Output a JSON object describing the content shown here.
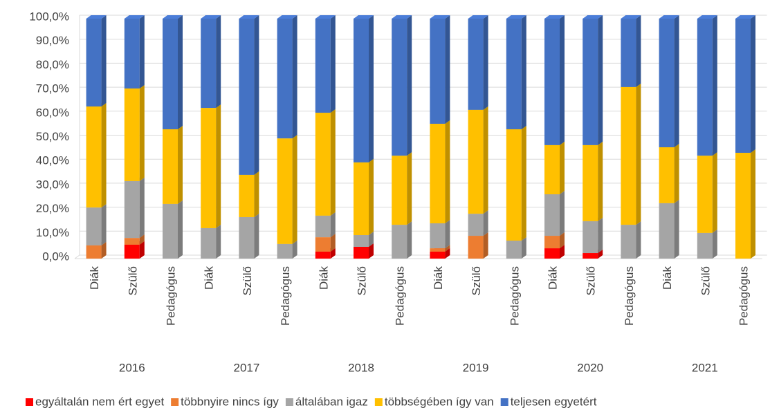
{
  "chart_data": {
    "type": "stacked_bar_3d",
    "categories": [
      "Diák",
      "Szülő",
      "Pedagógus",
      "Diák",
      "Szülő",
      "Pedagógus",
      "Diák",
      "Szülő",
      "Pedagógus",
      "Diák",
      "Szülő",
      "Pedagógus",
      "Diák",
      "Szülő",
      "Pedagógus",
      "Diák",
      "Szülő",
      "Pedagógus"
    ],
    "groups": [
      "2016",
      "2017",
      "2018",
      "2019",
      "2020",
      "2021"
    ],
    "series": [
      {
        "name": "egyáltalán nem ért egyet",
        "color": "#ff0000",
        "values": [
          0,
          5.8,
          0,
          0,
          0,
          0,
          2.9,
          4.9,
          0,
          2.9,
          0,
          0,
          4.3,
          2.3,
          0,
          0,
          0,
          0
        ]
      },
      {
        "name": "többnyire nincs így",
        "color": "#ed7d31",
        "values": [
          5.5,
          2.8,
          0,
          0,
          0,
          0,
          6.0,
          0,
          0,
          1.4,
          9.5,
          0,
          5.2,
          0,
          0,
          0,
          0,
          0
        ]
      },
      {
        "name": "általában igaz",
        "color": "#a5a5a5",
        "values": [
          15.8,
          23.7,
          22.8,
          12.7,
          17.3,
          6.1,
          9.0,
          4.9,
          14.1,
          10.4,
          9.2,
          7.5,
          17.3,
          13.3,
          14.1,
          23.1,
          10.7,
          0
        ]
      },
      {
        "name": "többségében így van",
        "color": "#ffc000",
        "values": [
          42.1,
          38.6,
          31.1,
          50.1,
          17.6,
          44.0,
          42.9,
          30.3,
          28.8,
          41.5,
          43.3,
          46.4,
          20.5,
          31.7,
          57.4,
          23.3,
          32.2,
          44.1
        ]
      },
      {
        "name": "teljesen egyetért",
        "color": "#4472c4",
        "values": [
          36.6,
          29.1,
          46.1,
          37.2,
          65.1,
          49.9,
          39.2,
          59.9,
          57.1,
          43.8,
          38.0,
          46.1,
          52.7,
          52.7,
          28.5,
          53.6,
          57.1,
          55.9
        ]
      }
    ],
    "ylim": [
      0,
      100
    ],
    "yticks": [
      {
        "value": 0,
        "label": "0,0%"
      },
      {
        "value": 10,
        "label": "10,0%"
      },
      {
        "value": 20,
        "label": "20,0%"
      },
      {
        "value": 30,
        "label": "30,0%"
      },
      {
        "value": 40,
        "label": "40,0%"
      },
      {
        "value": 50,
        "label": "50,0%"
      },
      {
        "value": 60,
        "label": "60,0%"
      },
      {
        "value": 70,
        "label": "70,0%"
      },
      {
        "value": 80,
        "label": "80,0%"
      },
      {
        "value": 90,
        "label": "90,0%"
      },
      {
        "value": 100,
        "label": "100,0%"
      }
    ],
    "grid": true,
    "legend": "bottom"
  }
}
